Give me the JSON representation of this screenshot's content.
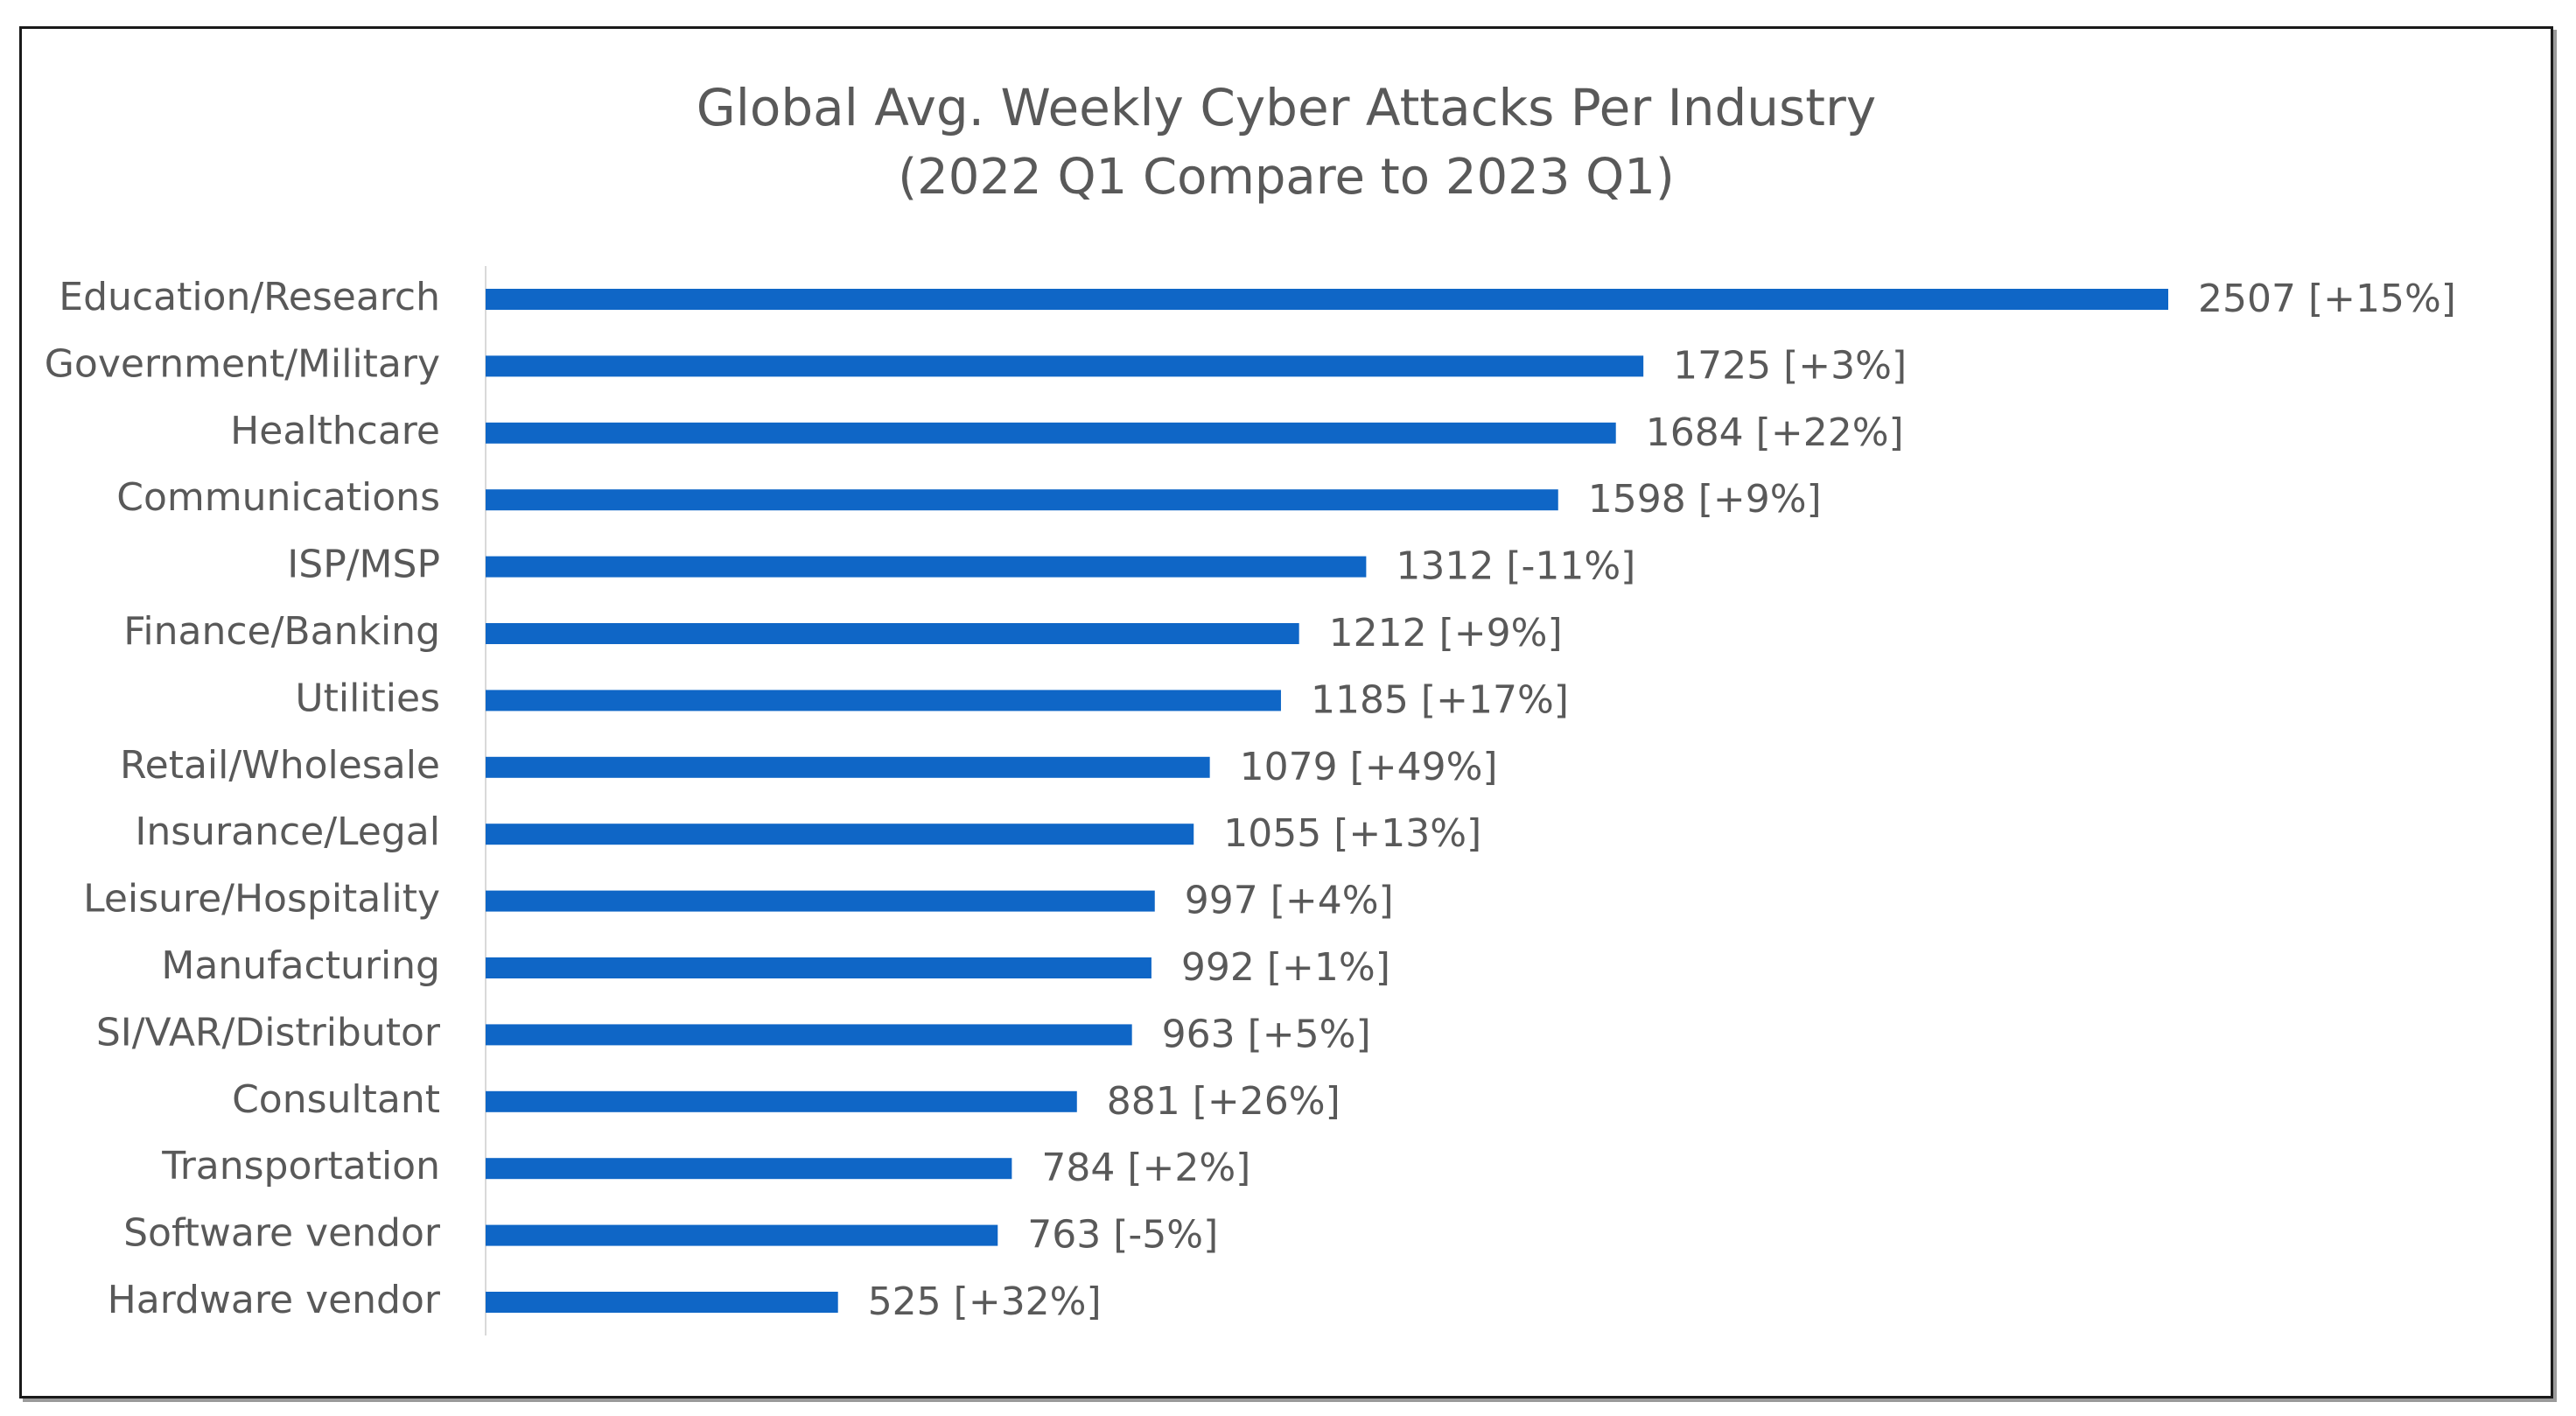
{
  "chart_data": {
    "type": "bar",
    "orientation": "horizontal",
    "title": "Global Avg. Weekly Cyber Attacks Per Industry",
    "subtitle": "(2022 Q1 Compare to 2023 Q1)",
    "xlabel": "",
    "ylabel": "",
    "xlim": [
      0,
      2507
    ],
    "grid": false,
    "legend": "none",
    "bar_color": "#0f66c6",
    "label_color": "#595959",
    "axis_color": "#d9d9d9",
    "categories": [
      "Education/Research",
      "Government/Military",
      "Healthcare",
      "Communications",
      "ISP/MSP",
      "Finance/Banking",
      "Utilities",
      "Retail/Wholesale",
      "Insurance/Legal",
      "Leisure/Hospitality",
      "Manufacturing",
      "SI/VAR/Distributor",
      "Consultant",
      "Transportation",
      "Software vendor",
      "Hardware vendor"
    ],
    "values": [
      2507,
      1725,
      1684,
      1598,
      1312,
      1212,
      1185,
      1079,
      1055,
      997,
      992,
      963,
      881,
      784,
      763,
      525
    ],
    "changes": [
      "+15%",
      "+3%",
      "+22%",
      "+9%",
      "-11%",
      "+9%",
      "+17%",
      "+49%",
      "+13%",
      "+4%",
      "+1%",
      "+5%",
      "+26%",
      "+2%",
      "-5%",
      "+32%"
    ],
    "data_labels": [
      "2507 [+15%]",
      "1725 [+3%]",
      "1684 [+22%]",
      "1598 [+9%]",
      "1312 [-11%]",
      "1212 [+9%]",
      "1185 [+17%]",
      "1079 [+49%]",
      "1055 [+13%]",
      "997 [+4%]",
      "992 [+1%]",
      "963 [+5%]",
      "881 [+26%]",
      "784 [+2%]",
      "763 [-5%]",
      "525 [+32%]"
    ]
  }
}
